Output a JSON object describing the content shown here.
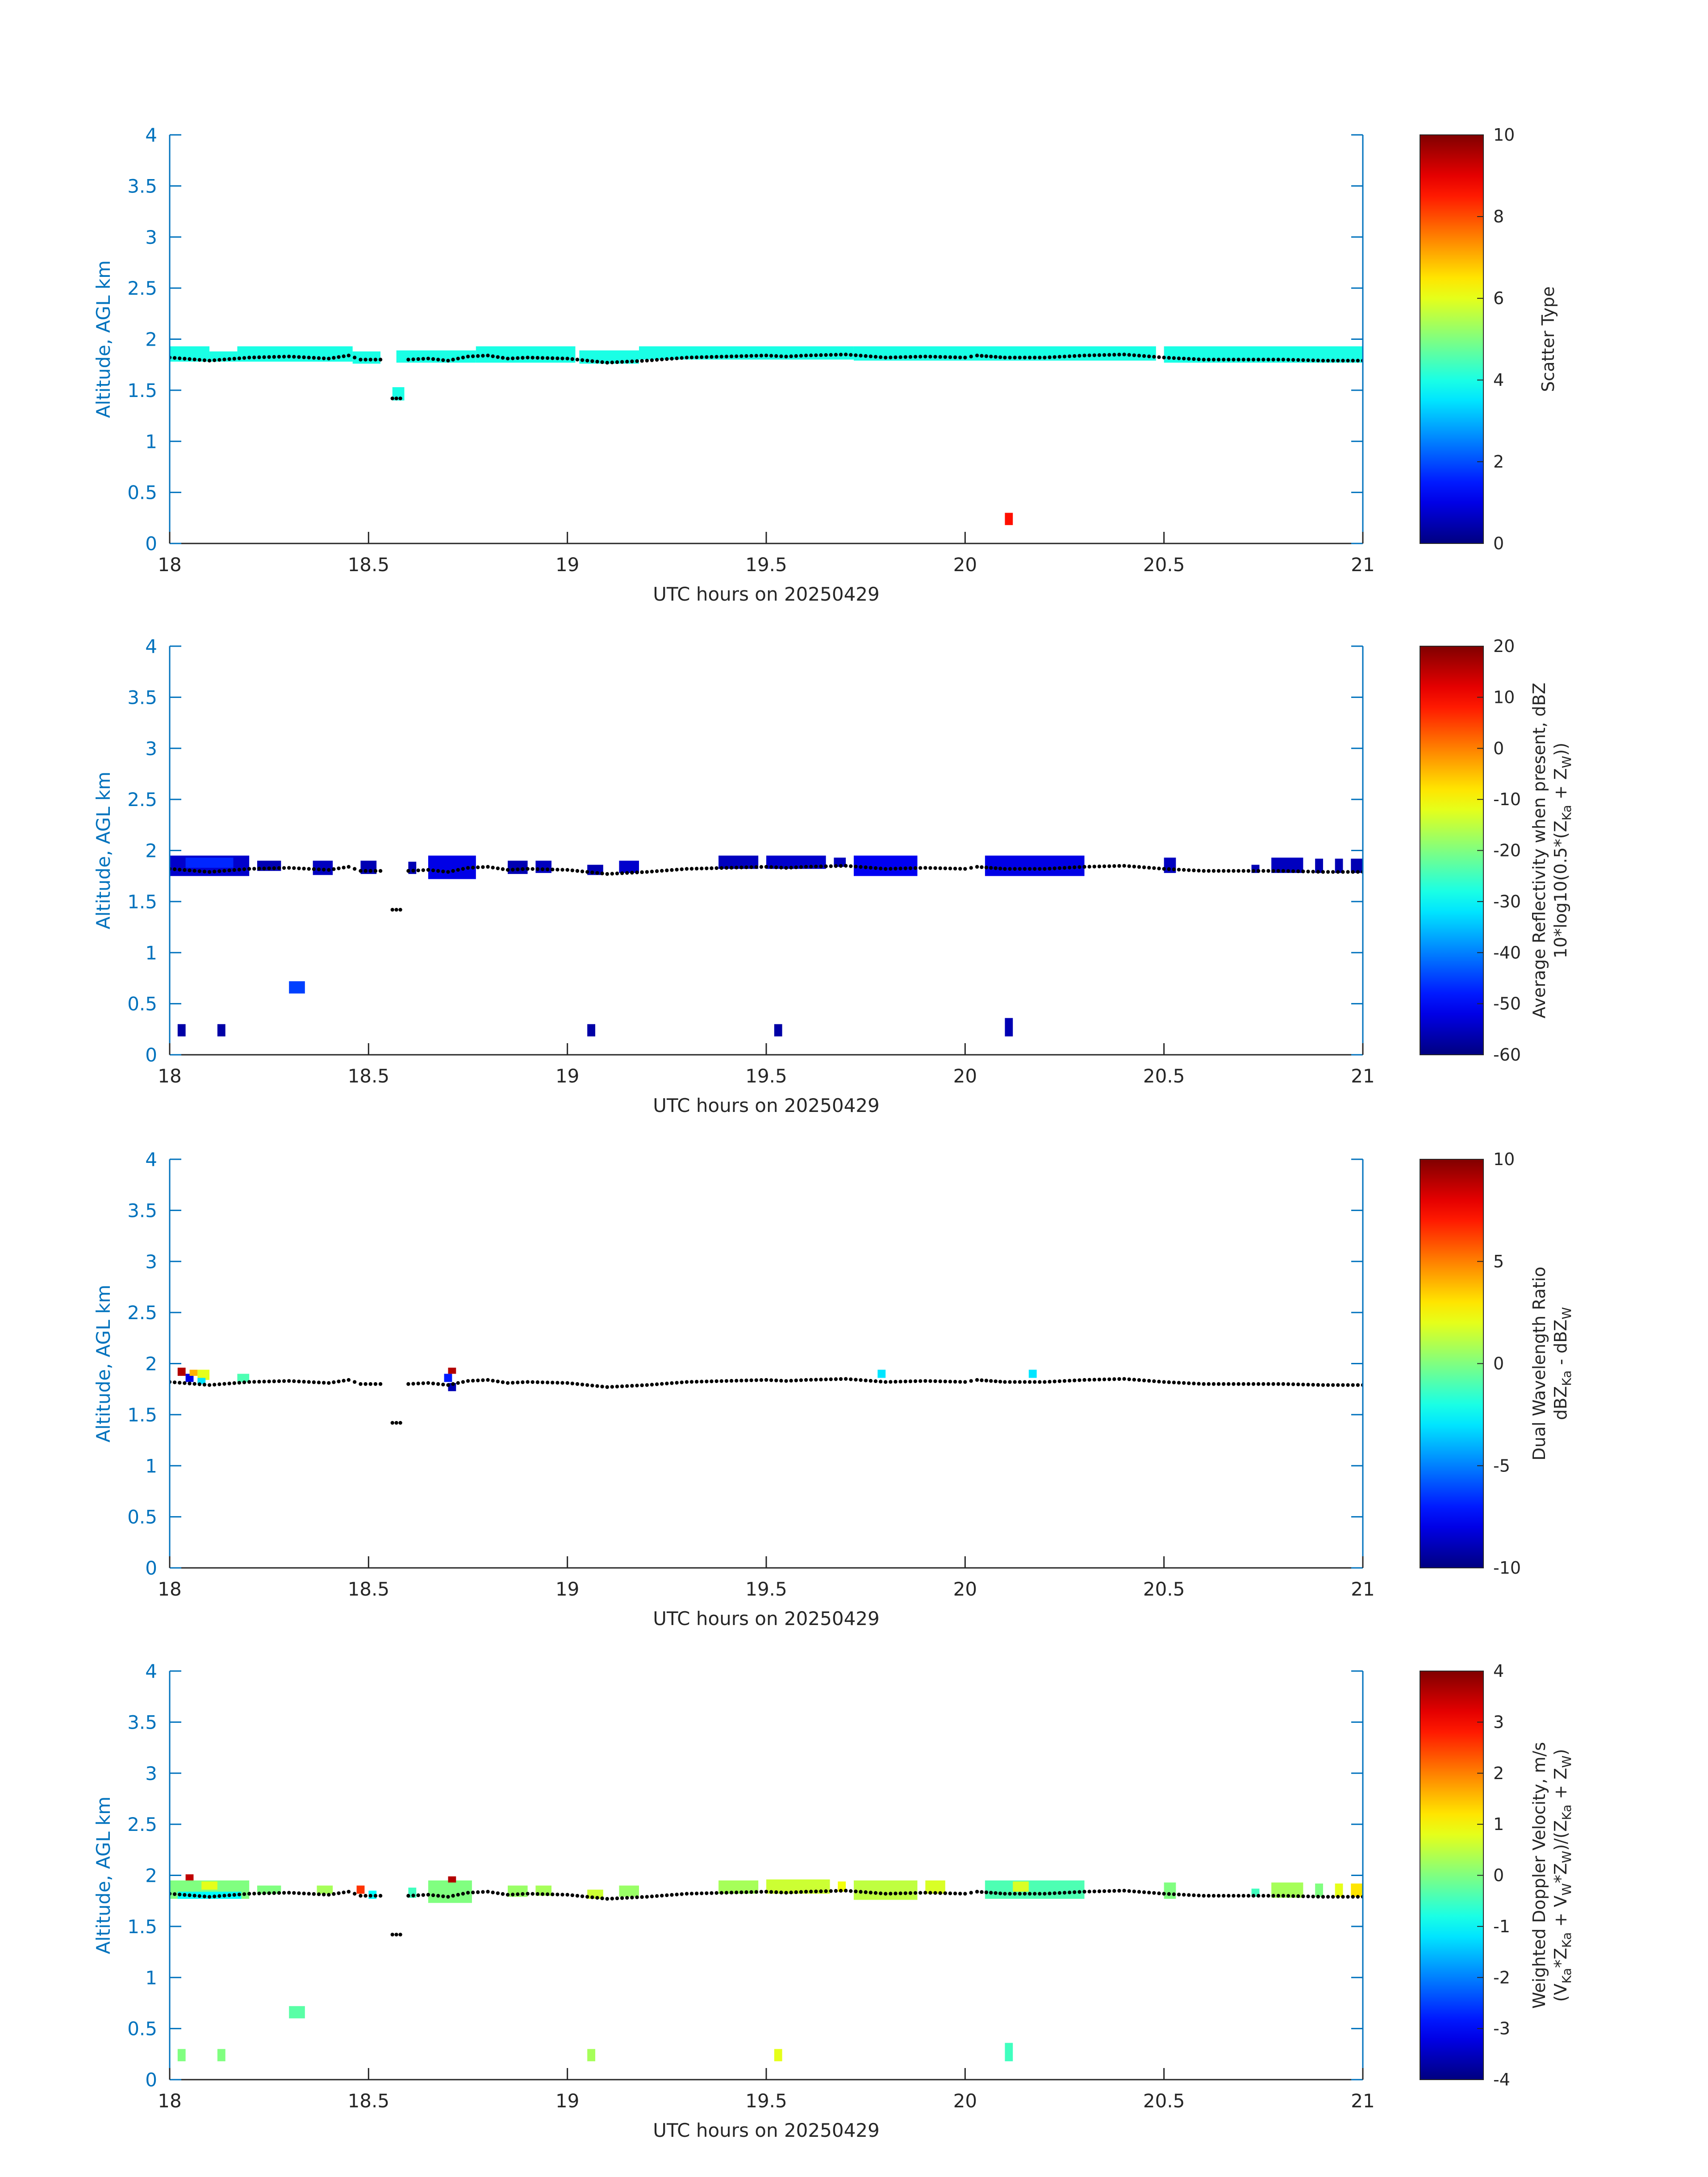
{
  "chart_data": [
    {
      "type": "heatmap",
      "xlabel": "UTC hours on 20250429",
      "ylabel": "Altitude, AGL km",
      "xlim": [
        18,
        21
      ],
      "ylim": [
        0,
        4
      ],
      "xticks": [
        "18",
        "18.5",
        "19",
        "19.5",
        "20",
        "20.5",
        "21"
      ],
      "yticks": [
        "0",
        "0.5",
        "1",
        "1.5",
        "2",
        "2.5",
        "3",
        "3.5",
        "4"
      ],
      "colorbar": {
        "label_lines": [
          "Scatter Type"
        ],
        "range": [
          0,
          10
        ],
        "ticks": [
          "0",
          "2",
          "4",
          "6",
          "8",
          "10"
        ],
        "colormap": "jet"
      },
      "cells": [
        {
          "t0": 18.0,
          "t1": 18.1,
          "z0": 1.78,
          "z1": 1.93,
          "v": 4
        },
        {
          "t0": 18.1,
          "t1": 18.17,
          "z0": 1.78,
          "z1": 1.88,
          "v": 4
        },
        {
          "t0": 18.17,
          "t1": 18.46,
          "z0": 1.78,
          "z1": 1.93,
          "v": 4
        },
        {
          "t0": 18.46,
          "t1": 18.53,
          "z0": 1.76,
          "z1": 1.88,
          "v": 4
        },
        {
          "t0": 18.56,
          "t1": 18.59,
          "z0": 1.4,
          "z1": 1.53,
          "v": 4
        },
        {
          "t0": 18.57,
          "t1": 18.77,
          "z0": 1.77,
          "z1": 1.89,
          "v": 4
        },
        {
          "t0": 18.77,
          "t1": 19.02,
          "z0": 1.77,
          "z1": 1.93,
          "v": 4
        },
        {
          "t0": 19.03,
          "t1": 19.18,
          "z0": 1.76,
          "z1": 1.89,
          "v": 4
        },
        {
          "t0": 19.18,
          "t1": 19.72,
          "z0": 1.8,
          "z1": 1.93,
          "v": 4
        },
        {
          "t0": 19.72,
          "t1": 20.48,
          "z0": 1.79,
          "z1": 1.93,
          "v": 4
        },
        {
          "t0": 20.5,
          "t1": 21.0,
          "z0": 1.77,
          "z1": 1.93,
          "v": 4
        },
        {
          "t0": 20.1,
          "t1": 20.12,
          "z0": 0.18,
          "z1": 0.3,
          "v": 8.6
        }
      ]
    },
    {
      "type": "heatmap",
      "xlabel": "UTC hours on 20250429",
      "ylabel": "Altitude, AGL km",
      "xlim": [
        18,
        21
      ],
      "ylim": [
        0,
        4
      ],
      "xticks": [
        "18",
        "18.5",
        "19",
        "19.5",
        "20",
        "20.5",
        "21"
      ],
      "yticks": [
        "0",
        "0.5",
        "1",
        "1.5",
        "2",
        "2.5",
        "3",
        "3.5",
        "4"
      ],
      "colorbar": {
        "label_lines": [
          "Average Reflectivity when present, dBZ",
          "10*log10(0.5*(Z_Ka + Z_W))"
        ],
        "range": [
          -60,
          20
        ],
        "ticks": [
          "-60",
          "-50",
          "-40",
          "-30",
          "-20",
          "-10",
          "0",
          "10",
          "20"
        ],
        "colormap": "jet"
      },
      "cells": [
        {
          "t0": 18.0,
          "t1": 18.2,
          "z0": 1.75,
          "z1": 1.95,
          "v": -54
        },
        {
          "t0": 18.04,
          "t1": 18.16,
          "z0": 1.83,
          "z1": 1.93,
          "v": -47
        },
        {
          "t0": 18.22,
          "t1": 18.28,
          "z0": 1.8,
          "z1": 1.9,
          "v": -56
        },
        {
          "t0": 18.36,
          "t1": 18.41,
          "z0": 1.76,
          "z1": 1.9,
          "v": -55
        },
        {
          "t0": 18.48,
          "t1": 18.52,
          "z0": 1.77,
          "z1": 1.9,
          "v": -56
        },
        {
          "t0": 18.6,
          "t1": 18.62,
          "z0": 1.77,
          "z1": 1.89,
          "v": -56
        },
        {
          "t0": 18.65,
          "t1": 18.77,
          "z0": 1.72,
          "z1": 1.95,
          "v": -52
        },
        {
          "t0": 18.85,
          "t1": 18.9,
          "z0": 1.77,
          "z1": 1.9,
          "v": -56
        },
        {
          "t0": 18.92,
          "t1": 18.96,
          "z0": 1.78,
          "z1": 1.9,
          "v": -55
        },
        {
          "t0": 19.05,
          "t1": 19.09,
          "z0": 1.76,
          "z1": 1.86,
          "v": -56
        },
        {
          "t0": 19.13,
          "t1": 19.18,
          "z0": 1.78,
          "z1": 1.9,
          "v": -54
        },
        {
          "t0": 19.38,
          "t1": 19.48,
          "z0": 1.82,
          "z1": 1.95,
          "v": -55
        },
        {
          "t0": 19.5,
          "t1": 19.65,
          "z0": 1.82,
          "z1": 1.95,
          "v": -54
        },
        {
          "t0": 19.67,
          "t1": 19.7,
          "z0": 1.84,
          "z1": 1.93,
          "v": -55
        },
        {
          "t0": 19.72,
          "t1": 19.88,
          "z0": 1.75,
          "z1": 1.95,
          "v": -51
        },
        {
          "t0": 20.05,
          "t1": 20.3,
          "z0": 1.75,
          "z1": 1.95,
          "v": -52
        },
        {
          "t0": 20.5,
          "t1": 20.53,
          "z0": 1.78,
          "z1": 1.93,
          "v": -55
        },
        {
          "t0": 20.72,
          "t1": 20.74,
          "z0": 1.78,
          "z1": 1.86,
          "v": -56
        },
        {
          "t0": 20.77,
          "t1": 20.85,
          "z0": 1.78,
          "z1": 1.93,
          "v": -55
        },
        {
          "t0": 20.88,
          "t1": 20.9,
          "z0": 1.78,
          "z1": 1.92,
          "v": -56
        },
        {
          "t0": 20.93,
          "t1": 20.95,
          "z0": 1.78,
          "z1": 1.92,
          "v": -56
        },
        {
          "t0": 20.97,
          "t1": 21.0,
          "z0": 1.78,
          "z1": 1.92,
          "v": -56
        },
        {
          "t0": 18.3,
          "t1": 18.34,
          "z0": 0.6,
          "z1": 0.72,
          "v": -45
        },
        {
          "t0": 18.02,
          "t1": 18.04,
          "z0": 0.18,
          "z1": 0.3,
          "v": -57
        },
        {
          "t0": 18.12,
          "t1": 18.14,
          "z0": 0.18,
          "z1": 0.3,
          "v": -57
        },
        {
          "t0": 19.05,
          "t1": 19.07,
          "z0": 0.18,
          "z1": 0.3,
          "v": -57
        },
        {
          "t0": 19.52,
          "t1": 19.54,
          "z0": 0.18,
          "z1": 0.3,
          "v": -57
        },
        {
          "t0": 20.1,
          "t1": 20.12,
          "z0": 0.18,
          "z1": 0.36,
          "v": -56
        }
      ]
    },
    {
      "type": "heatmap",
      "xlabel": "UTC hours on 20250429",
      "ylabel": "Altitude, AGL km",
      "xlim": [
        18,
        21
      ],
      "ylim": [
        0,
        4
      ],
      "xticks": [
        "18",
        "18.5",
        "19",
        "19.5",
        "20",
        "20.5",
        "21"
      ],
      "yticks": [
        "0",
        "0.5",
        "1",
        "1.5",
        "2",
        "2.5",
        "3",
        "3.5",
        "4"
      ],
      "colorbar": {
        "label_lines": [
          "Dual Wavelength Ratio",
          "dBZ_Ka - dBZ_W"
        ],
        "range": [
          -10,
          10
        ],
        "ticks": [
          "-10",
          "-5",
          "0",
          "5",
          "10"
        ],
        "colormap": "jet"
      },
      "cells": [
        {
          "t0": 18.02,
          "t1": 18.04,
          "z0": 1.88,
          "z1": 1.96,
          "v": 9
        },
        {
          "t0": 18.04,
          "t1": 18.06,
          "z0": 1.82,
          "z1": 1.9,
          "v": -8
        },
        {
          "t0": 18.05,
          "t1": 18.07,
          "z0": 1.88,
          "z1": 1.94,
          "v": 4
        },
        {
          "t0": 18.07,
          "t1": 18.1,
          "z0": 1.84,
          "z1": 1.94,
          "v": 2
        },
        {
          "t0": 18.07,
          "t1": 18.09,
          "z0": 1.8,
          "z1": 1.86,
          "v": -3
        },
        {
          "t0": 18.17,
          "t1": 18.2,
          "z0": 1.82,
          "z1": 1.9,
          "v": -1
        },
        {
          "t0": 18.69,
          "t1": 18.71,
          "z0": 1.82,
          "z1": 1.9,
          "v": -7
        },
        {
          "t0": 18.7,
          "t1": 18.72,
          "z0": 1.9,
          "z1": 1.96,
          "v": 9
        },
        {
          "t0": 18.7,
          "t1": 18.72,
          "z0": 1.73,
          "z1": 1.81,
          "v": -9
        },
        {
          "t0": 19.78,
          "t1": 19.8,
          "z0": 1.86,
          "z1": 1.94,
          "v": -3
        },
        {
          "t0": 20.16,
          "t1": 20.18,
          "z0": 1.86,
          "z1": 1.94,
          "v": -3
        }
      ]
    },
    {
      "type": "heatmap",
      "xlabel": "UTC hours on 20250429",
      "ylabel": "Altitude, AGL km",
      "xlim": [
        18,
        21
      ],
      "ylim": [
        0,
        4
      ],
      "xticks": [
        "18",
        "18.5",
        "19",
        "19.5",
        "20",
        "20.5",
        "21"
      ],
      "yticks": [
        "0",
        "0.5",
        "1",
        "1.5",
        "2",
        "2.5",
        "3",
        "3.5",
        "4"
      ],
      "colorbar": {
        "label_lines": [
          "Weighted Doppler Velocity, m/s",
          "(V_Ka*Z_Ka + V_W*Z_W)/(Z_Ka + Z_W)"
        ],
        "range": [
          -4,
          4
        ],
        "ticks": [
          "-4",
          "-3",
          "-2",
          "-1",
          "0",
          "1",
          "2",
          "3",
          "4"
        ],
        "colormap": "jet"
      },
      "cells": [
        {
          "t0": 18.0,
          "t1": 18.2,
          "z0": 1.77,
          "z1": 1.95,
          "v": 0
        },
        {
          "t0": 18.02,
          "t1": 18.18,
          "z0": 1.77,
          "z1": 1.84,
          "v": -1
        },
        {
          "t0": 18.04,
          "t1": 18.06,
          "z0": 1.95,
          "z1": 2.01,
          "v": 3.5
        },
        {
          "t0": 18.08,
          "t1": 18.12,
          "z0": 1.86,
          "z1": 1.94,
          "v": 0.8
        },
        {
          "t0": 18.22,
          "t1": 18.28,
          "z0": 1.82,
          "z1": 1.9,
          "v": 0
        },
        {
          "t0": 18.37,
          "t1": 18.41,
          "z0": 1.82,
          "z1": 1.9,
          "v": 0.3
        },
        {
          "t0": 18.47,
          "t1": 18.49,
          "z0": 1.82,
          "z1": 1.9,
          "v": 2.6
        },
        {
          "t0": 18.5,
          "t1": 18.52,
          "z0": 1.77,
          "z1": 1.85,
          "v": -1
        },
        {
          "t0": 18.6,
          "t1": 18.62,
          "z0": 1.78,
          "z1": 1.88,
          "v": -0.5
        },
        {
          "t0": 18.65,
          "t1": 18.76,
          "z0": 1.73,
          "z1": 1.95,
          "v": 0
        },
        {
          "t0": 18.7,
          "t1": 18.72,
          "z0": 1.93,
          "z1": 1.99,
          "v": 3.6
        },
        {
          "t0": 18.85,
          "t1": 18.9,
          "z0": 1.79,
          "z1": 1.9,
          "v": 0.2
        },
        {
          "t0": 18.92,
          "t1": 18.96,
          "z0": 1.8,
          "z1": 1.9,
          "v": 0.3
        },
        {
          "t0": 19.05,
          "t1": 19.09,
          "z0": 1.77,
          "z1": 1.86,
          "v": 0.6
        },
        {
          "t0": 19.13,
          "t1": 19.18,
          "z0": 1.79,
          "z1": 1.9,
          "v": 0.2
        },
        {
          "t0": 19.38,
          "t1": 19.48,
          "z0": 1.82,
          "z1": 1.95,
          "v": 0.3
        },
        {
          "t0": 19.5,
          "t1": 19.66,
          "z0": 1.82,
          "z1": 1.96,
          "v": 0.6
        },
        {
          "t0": 19.68,
          "t1": 19.7,
          "z0": 1.84,
          "z1": 1.94,
          "v": 0.9
        },
        {
          "t0": 19.72,
          "t1": 19.88,
          "z0": 1.76,
          "z1": 1.95,
          "v": 0.5
        },
        {
          "t0": 19.9,
          "t1": 19.95,
          "z0": 1.82,
          "z1": 1.95,
          "v": 0.7
        },
        {
          "t0": 20.05,
          "t1": 20.3,
          "z0": 1.77,
          "z1": 1.95,
          "v": -0.4
        },
        {
          "t0": 20.12,
          "t1": 20.16,
          "z0": 1.84,
          "z1": 1.94,
          "v": 0.7
        },
        {
          "t0": 20.5,
          "t1": 20.53,
          "z0": 1.77,
          "z1": 1.93,
          "v": 0
        },
        {
          "t0": 20.72,
          "t1": 20.74,
          "z0": 1.79,
          "z1": 1.87,
          "v": -0.5
        },
        {
          "t0": 20.77,
          "t1": 20.85,
          "z0": 1.78,
          "z1": 1.93,
          "v": 0.3
        },
        {
          "t0": 20.88,
          "t1": 20.9,
          "z0": 1.79,
          "z1": 1.92,
          "v": 0
        },
        {
          "t0": 20.93,
          "t1": 20.95,
          "z0": 1.79,
          "z1": 1.92,
          "v": 0.8
        },
        {
          "t0": 20.97,
          "t1": 21.0,
          "z0": 1.79,
          "z1": 1.92,
          "v": 1.2
        },
        {
          "t0": 18.3,
          "t1": 18.34,
          "z0": 0.6,
          "z1": 0.72,
          "v": -0.3
        },
        {
          "t0": 18.02,
          "t1": 18.04,
          "z0": 0.18,
          "z1": 0.3,
          "v": 0
        },
        {
          "t0": 18.12,
          "t1": 18.14,
          "z0": 0.18,
          "z1": 0.3,
          "v": 0
        },
        {
          "t0": 19.05,
          "t1": 19.07,
          "z0": 0.18,
          "z1": 0.3,
          "v": 0.3
        },
        {
          "t0": 19.52,
          "t1": 19.54,
          "z0": 0.18,
          "z1": 0.3,
          "v": 0.8
        },
        {
          "t0": 20.1,
          "t1": 20.12,
          "z0": 0.18,
          "z1": 0.36,
          "v": -0.5
        }
      ]
    }
  ],
  "cloud_base_series": {
    "name": "",
    "points": [
      [
        18.0,
        1.82
      ],
      [
        18.1,
        1.79
      ],
      [
        18.2,
        1.82
      ],
      [
        18.3,
        1.83
      ],
      [
        18.4,
        1.81
      ],
      [
        18.45,
        1.84
      ],
      [
        18.48,
        1.8
      ],
      [
        18.53,
        1.8
      ],
      [
        18.56,
        1.42
      ],
      [
        18.58,
        1.42
      ],
      [
        18.6,
        1.8
      ],
      [
        18.65,
        1.81
      ],
      [
        18.7,
        1.79
      ],
      [
        18.75,
        1.83
      ],
      [
        18.8,
        1.84
      ],
      [
        18.85,
        1.81
      ],
      [
        18.9,
        1.82
      ],
      [
        19.0,
        1.81
      ],
      [
        19.05,
        1.79
      ],
      [
        19.1,
        1.77
      ],
      [
        19.2,
        1.79
      ],
      [
        19.3,
        1.82
      ],
      [
        19.4,
        1.83
      ],
      [
        19.5,
        1.84
      ],
      [
        19.55,
        1.83
      ],
      [
        19.6,
        1.84
      ],
      [
        19.7,
        1.85
      ],
      [
        19.8,
        1.82
      ],
      [
        19.9,
        1.83
      ],
      [
        20.0,
        1.82
      ],
      [
        20.03,
        1.84
      ],
      [
        20.1,
        1.82
      ],
      [
        20.2,
        1.82
      ],
      [
        20.3,
        1.84
      ],
      [
        20.4,
        1.85
      ],
      [
        20.5,
        1.82
      ],
      [
        20.6,
        1.8
      ],
      [
        20.7,
        1.8
      ],
      [
        20.8,
        1.8
      ],
      [
        20.9,
        1.79
      ],
      [
        21.0,
        1.79
      ]
    ]
  }
}
